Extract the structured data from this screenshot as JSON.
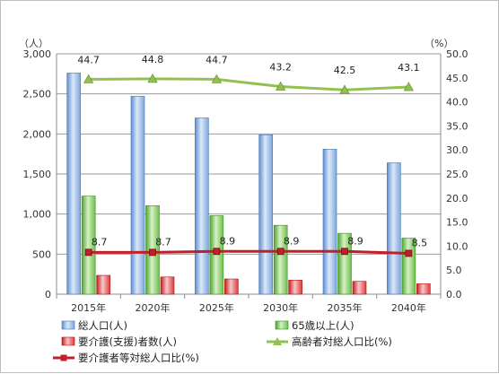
{
  "chart_data": {
    "type": "bar",
    "categories": [
      "2015年",
      "2020年",
      "2025年",
      "2030年",
      "2035年",
      "2040年"
    ],
    "left_axis": {
      "unit_label": "（人）",
      "ylim": [
        0,
        3000
      ],
      "ticks": [
        "0",
        "500",
        "1,000",
        "1,500",
        "2,000",
        "2,500",
        "3,000"
      ]
    },
    "right_axis": {
      "unit_label": "（%）",
      "ylim": [
        0,
        50
      ],
      "ticks": [
        "0.0",
        "5.0",
        "10.0",
        "15.0",
        "20.0",
        "25.0",
        "30.0",
        "35.0",
        "40.0",
        "45.0",
        "50.0"
      ]
    },
    "series": [
      {
        "name": "総人口(人)",
        "kind": "bar",
        "axis": "left",
        "color": "#8eb4e3",
        "values": [
          2760,
          2470,
          2200,
          1990,
          1810,
          1640
        ]
      },
      {
        "name": "65歳以上(人)",
        "kind": "bar",
        "axis": "left",
        "color": "#8cd26b",
        "values": [
          1225,
          1105,
          980,
          860,
          760,
          700
        ]
      },
      {
        "name": "要介護(支援)者数(人)",
        "kind": "bar",
        "axis": "left",
        "color": "#e83c3c",
        "values": [
          235,
          215,
          190,
          175,
          160,
          130
        ]
      },
      {
        "name": "高齢者対総人口比(%)",
        "kind": "line",
        "axis": "right",
        "color": "#92c152",
        "marker": "triangle",
        "values": [
          44.7,
          44.8,
          44.7,
          43.2,
          42.5,
          43.1
        ],
        "labels": [
          "44.7",
          "44.8",
          "44.7",
          "43.2",
          "42.5",
          "43.1"
        ]
      },
      {
        "name": "要介護者等対総人口比(%)",
        "kind": "line",
        "axis": "right",
        "color": "#c0202a",
        "marker": "square",
        "values": [
          8.7,
          8.7,
          8.9,
          8.9,
          8.9,
          8.5
        ],
        "labels": [
          "8.7",
          "8.7",
          "8.9",
          "8.9",
          "8.9",
          "8.5"
        ]
      }
    ],
    "grid": true,
    "legend_position": "bottom"
  },
  "legend": {
    "items": [
      {
        "label": "総人口(人)",
        "symbol": "bar",
        "color": "#8eb4e3"
      },
      {
        "label": "65歳以上(人)",
        "symbol": "bar",
        "color": "#8cd26b"
      },
      {
        "label": "要介護(支援)者数(人)",
        "symbol": "bar",
        "color": "#e83c3c"
      },
      {
        "label": "高齢者対総人口比(%)",
        "symbol": "triangle-line",
        "color": "#92c152"
      },
      {
        "label": "要介護者等対総人口比(%)",
        "symbol": "square-line",
        "color": "#c0202a"
      }
    ]
  }
}
